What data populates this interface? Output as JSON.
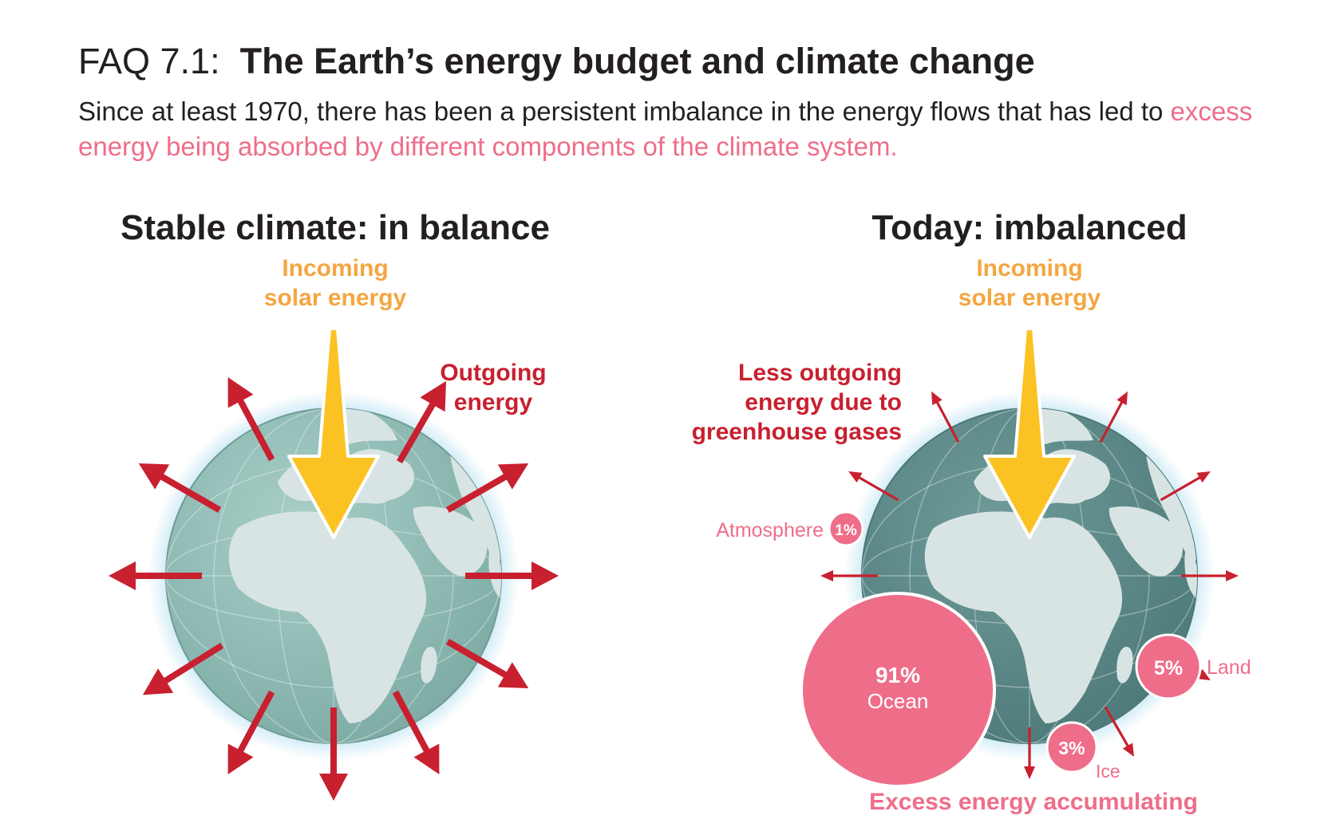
{
  "header": {
    "faq_label": "FAQ 7.1:",
    "title": "The Earth’s energy budget and climate change",
    "subtitle_prefix": "Since at least 1970, there has been a persistent imbalance in the energy flows that has led to",
    "subtitle_highlight": "excess energy being absorbed by different components of the climate system."
  },
  "left_panel": {
    "heading": "Stable climate: in balance",
    "incoming_line1": "Incoming",
    "incoming_line2": "solar energy",
    "outgoing_line1": "Outgoing",
    "outgoing_line2": "energy"
  },
  "right_panel": {
    "heading": "Today: imbalanced",
    "incoming_line1": "Incoming",
    "incoming_line2": "solar energy",
    "less_outgoing_line1": "Less outgoing",
    "less_outgoing_line2": "energy due to",
    "less_outgoing_line3": "greenhouse gases",
    "footer": "Excess energy accumulating",
    "components": [
      {
        "name": "Ocean",
        "percent": "91%",
        "value": 91
      },
      {
        "name": "Land",
        "percent": "5%",
        "value": 5
      },
      {
        "name": "Ice",
        "percent": "3%",
        "value": 3
      },
      {
        "name": "Atmosphere",
        "percent": "1%",
        "value": 1
      }
    ]
  },
  "colors": {
    "incoming": "#f4a641",
    "outgoing": "#c8202f",
    "excess": "#ee6e8a",
    "arrow_yellow": "#fbc223",
    "earth_stable": "#8fbcb4",
    "earth_today": "#5e8b8a",
    "land": "#d8e4e3"
  }
}
